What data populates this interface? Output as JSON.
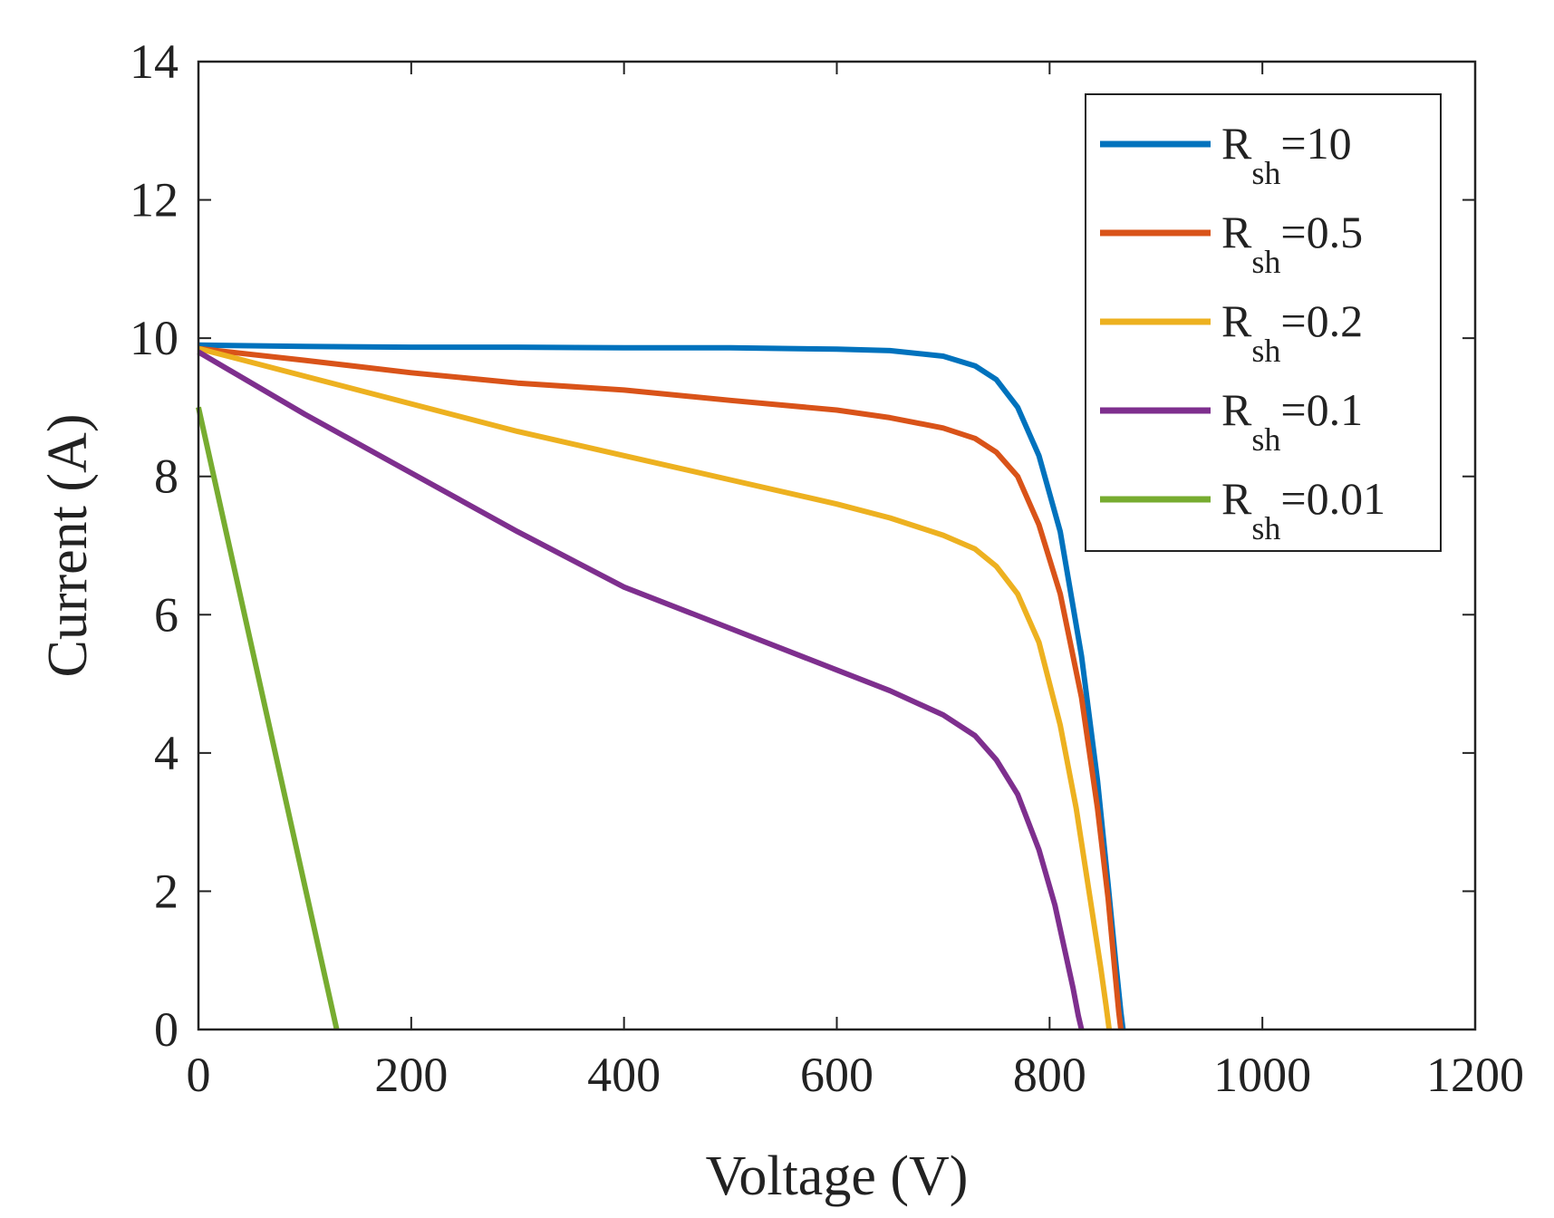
{
  "chart_data": {
    "type": "line",
    "title": "",
    "xlabel": "Voltage (V)",
    "ylabel": "Current (A)",
    "xlim": [
      0,
      1200
    ],
    "ylim": [
      0,
      14
    ],
    "xticks": [
      0,
      200,
      400,
      600,
      800,
      1000,
      1200
    ],
    "yticks": [
      0,
      2,
      4,
      6,
      8,
      10,
      12,
      14
    ],
    "xtick_labels": [
      "0",
      "200",
      "400",
      "600",
      "800",
      "1000",
      "1200"
    ],
    "ytick_labels": [
      "0",
      "2",
      "4",
      "6",
      "8",
      "10",
      "12",
      "14"
    ],
    "grid": false,
    "legend_position": "top-right",
    "series": [
      {
        "name": "R_sh=10",
        "label_main": "R",
        "label_sub": "sh",
        "label_value": "=10",
        "color": "#0072BD",
        "x": [
          0,
          100,
          200,
          300,
          400,
          500,
          600,
          650,
          700,
          730,
          750,
          770,
          790,
          810,
          830,
          845,
          855,
          862,
          867,
          869
        ],
        "y": [
          9.9,
          9.88,
          9.87,
          9.87,
          9.86,
          9.86,
          9.84,
          9.82,
          9.74,
          9.6,
          9.4,
          9.0,
          8.3,
          7.2,
          5.4,
          3.6,
          2.1,
          1.0,
          0.25,
          0
        ]
      },
      {
        "name": "R_sh=0.5",
        "label_main": "R",
        "label_sub": "sh",
        "label_value": "=0.5",
        "color": "#D95319",
        "x": [
          0,
          100,
          200,
          300,
          400,
          500,
          600,
          650,
          700,
          730,
          750,
          770,
          790,
          810,
          830,
          845,
          855,
          861,
          865,
          867
        ],
        "y": [
          9.85,
          9.68,
          9.5,
          9.35,
          9.25,
          9.1,
          8.96,
          8.85,
          8.7,
          8.55,
          8.35,
          8.0,
          7.3,
          6.3,
          4.8,
          3.2,
          1.9,
          0.9,
          0.25,
          0
        ]
      },
      {
        "name": "R_sh=0.2",
        "label_main": "R",
        "label_sub": "sh",
        "label_value": "=0.2",
        "color": "#EDB120",
        "x": [
          0,
          100,
          200,
          300,
          400,
          500,
          600,
          650,
          700,
          730,
          750,
          770,
          790,
          810,
          825,
          838,
          848,
          853,
          856
        ],
        "y": [
          9.85,
          9.45,
          9.05,
          8.65,
          8.3,
          7.95,
          7.6,
          7.4,
          7.15,
          6.95,
          6.7,
          6.3,
          5.6,
          4.4,
          3.2,
          1.9,
          0.9,
          0.35,
          0
        ]
      },
      {
        "name": "R_sh=0.1",
        "label_main": "R",
        "label_sub": "sh",
        "label_value": "=0.1",
        "color": "#7E2F8E",
        "x": [
          0,
          100,
          200,
          300,
          400,
          500,
          600,
          650,
          700,
          730,
          750,
          770,
          790,
          805,
          815,
          822,
          827,
          830
        ],
        "y": [
          9.8,
          8.9,
          8.05,
          7.2,
          6.4,
          5.8,
          5.2,
          4.9,
          4.55,
          4.25,
          3.9,
          3.4,
          2.6,
          1.8,
          1.1,
          0.6,
          0.2,
          0
        ]
      },
      {
        "name": "R_sh=0.01",
        "label_main": "R",
        "label_sub": "sh",
        "label_value": "=0.01",
        "color": "#77AC30",
        "x": [
          0,
          130
        ],
        "y": [
          9.0,
          0
        ]
      }
    ]
  }
}
